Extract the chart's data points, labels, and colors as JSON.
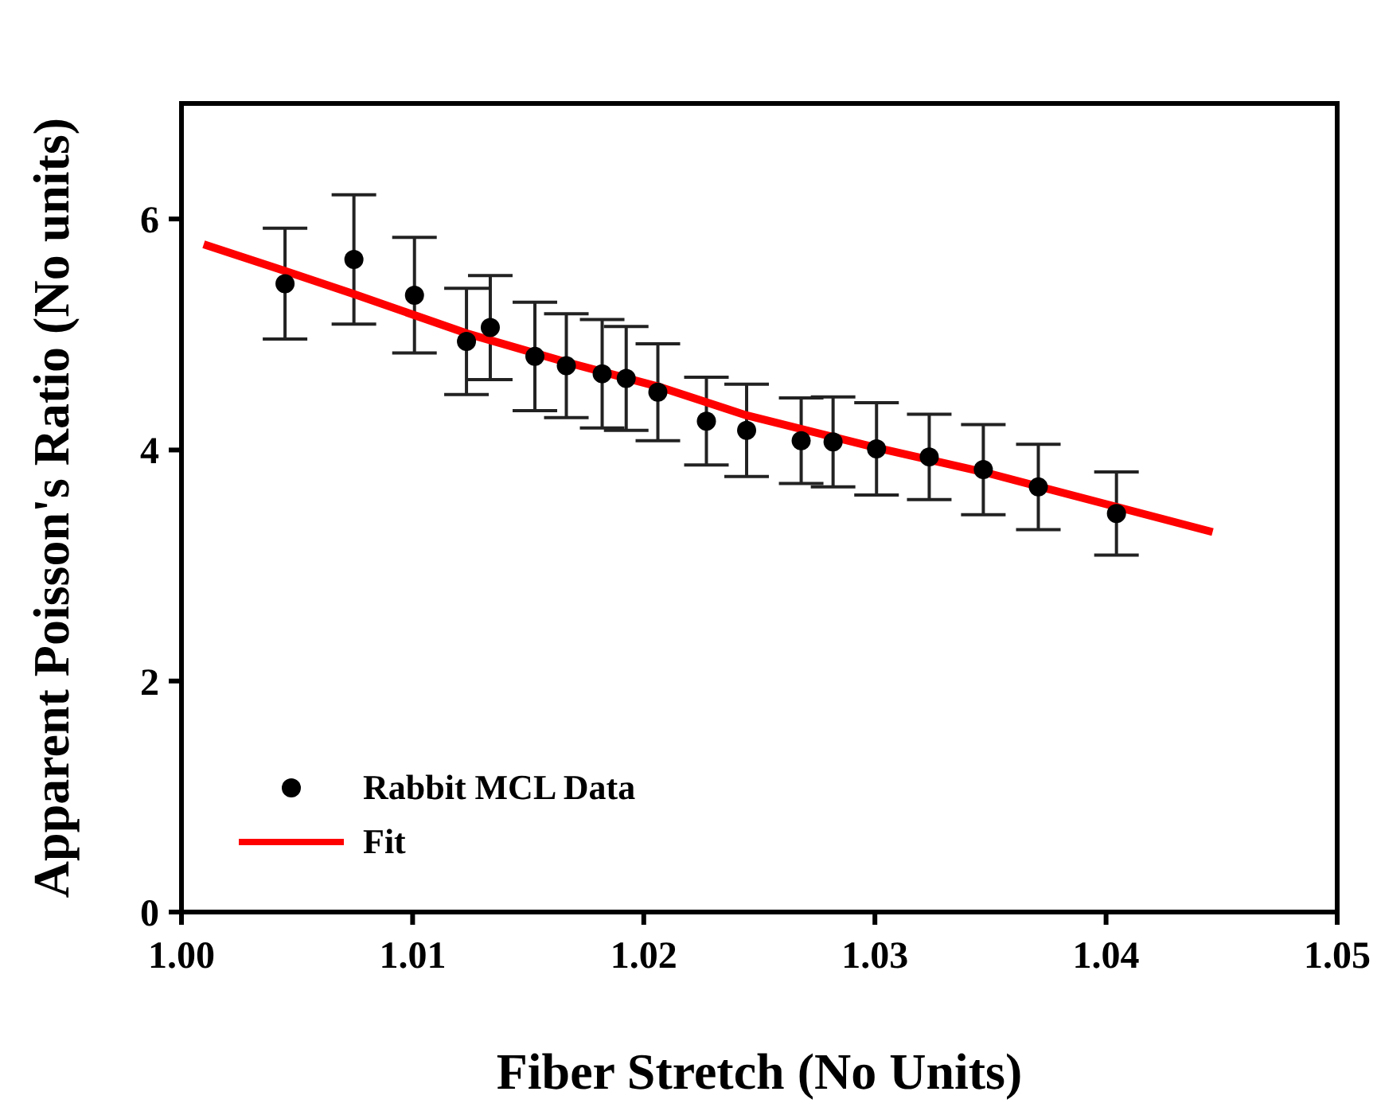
{
  "chart_data": {
    "type": "scatter",
    "xlabel": "Fiber Stretch (No Units)",
    "ylabel": "Apparent Poisson's Ratio (No units)",
    "xlim": [
      1.0,
      1.05
    ],
    "xticks": [
      {
        "value": 1.0,
        "label": "1.00"
      },
      1.01,
      1.02,
      1.03,
      1.04,
      1.05
    ],
    "ylim": [
      0,
      7
    ],
    "yticks": [
      0,
      2,
      4,
      6
    ],
    "grid": false,
    "legend": "bottom left",
    "series": [
      {
        "name": "Rabbit MCL Data",
        "type": "scatter",
        "color": "#000000",
        "marker": "circle",
        "x": [
          1.00448,
          1.00746,
          1.01008,
          1.01233,
          1.01336,
          1.01529,
          1.01665,
          1.0182,
          1.01924,
          1.02061,
          1.02271,
          1.02445,
          1.02681,
          1.02819,
          1.03007,
          1.03235,
          1.03469,
          1.03707,
          1.04045
        ],
        "values": [
          5.44,
          5.65,
          5.34,
          4.94,
          5.06,
          4.81,
          4.73,
          4.66,
          4.62,
          4.5,
          4.25,
          4.17,
          4.08,
          4.07,
          4.01,
          3.94,
          3.83,
          3.68,
          3.45
        ],
        "errors": [
          0.48,
          0.56,
          0.5,
          0.46,
          0.45,
          0.47,
          0.45,
          0.47,
          0.45,
          0.42,
          0.38,
          0.4,
          0.37,
          0.39,
          0.4,
          0.37,
          0.39,
          0.37,
          0.36
        ]
      },
      {
        "name": "Fit",
        "type": "line",
        "color": "#ff0000",
        "marker": "none",
        "line_style": "solid",
        "x": [
          1.00096,
          1.00448,
          1.00746,
          1.01233,
          1.01665,
          1.02061,
          1.02445,
          1.03007,
          1.03469,
          1.04461
        ],
        "values": [
          5.78,
          5.55,
          5.35,
          5.01,
          4.76,
          4.55,
          4.3,
          4.02,
          3.81,
          3.29
        ]
      }
    ]
  }
}
